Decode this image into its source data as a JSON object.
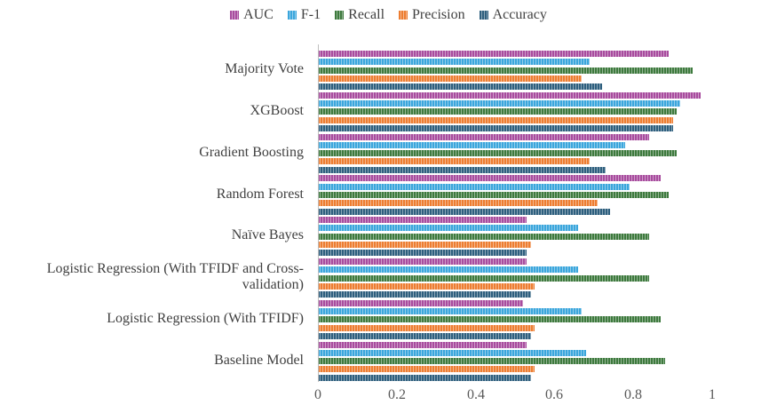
{
  "chart_data": {
    "type": "bar",
    "orientation": "horizontal",
    "title": "",
    "categories": [
      "Majority Vote",
      "XGBoost",
      "Gradient Boosting",
      "Random Forest",
      "Naïve Bayes",
      "Logistic Regression (With TFIDF and Cross-validation)",
      "Logistic Regression (With TFIDF)",
      "Baseline Model"
    ],
    "series": [
      {
        "name": "AUC",
        "color": "#A84C9E",
        "values": [
          0.89,
          0.97,
          0.84,
          0.87,
          0.53,
          0.53,
          0.52,
          0.53
        ]
      },
      {
        "name": "F-1",
        "color": "#3BA6DC",
        "values": [
          0.69,
          0.92,
          0.78,
          0.79,
          0.66,
          0.66,
          0.67,
          0.68
        ]
      },
      {
        "name": "Recall",
        "color": "#3E7A3E",
        "values": [
          0.95,
          0.91,
          0.91,
          0.89,
          0.84,
          0.84,
          0.87,
          0.88
        ]
      },
      {
        "name": "Precision",
        "color": "#ED7D31",
        "values": [
          0.67,
          0.9,
          0.69,
          0.71,
          0.54,
          0.55,
          0.55,
          0.55
        ]
      },
      {
        "name": "Accuracy",
        "color": "#2E5F7E",
        "values": [
          0.72,
          0.9,
          0.73,
          0.74,
          0.53,
          0.54,
          0.54,
          0.54
        ]
      }
    ],
    "xlim": [
      0,
      1
    ],
    "x_ticks": [
      0,
      0.2,
      0.4,
      0.6,
      0.8,
      1
    ],
    "x_tick_labels": [
      "0",
      "0.2",
      "0.4",
      "0.6",
      "0.8",
      "1"
    ],
    "legend_position": "top",
    "grid": false,
    "bar_texture": "vertical-stripes"
  },
  "colors": {
    "axis_line": "#BFBFBF",
    "text": "#404040",
    "background": "#FFFFFF"
  }
}
